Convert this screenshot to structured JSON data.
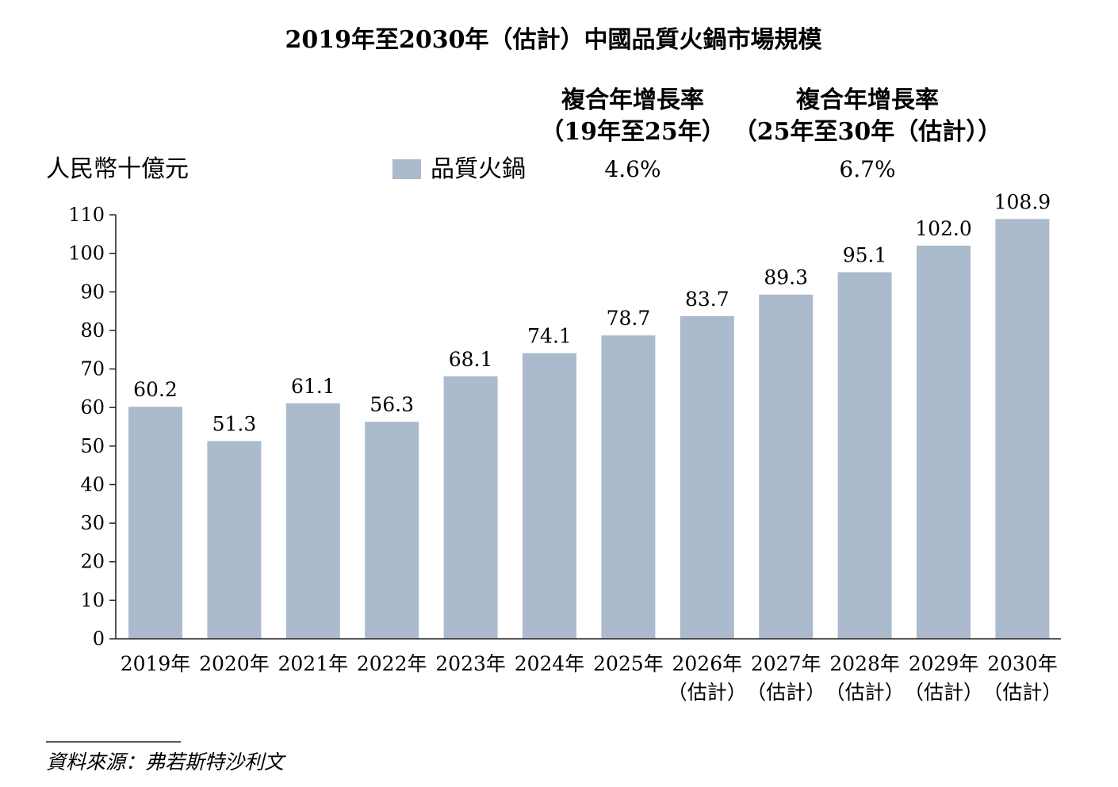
{
  "chart_data": {
    "type": "bar",
    "title": "2019年至2030年（估計）中國品質火鍋市場規模",
    "ylabel": "人民幣十億元",
    "xlabel": "",
    "ylim": [
      0,
      110
    ],
    "yticks": [
      "0",
      "10",
      "20",
      "30",
      "40",
      "50",
      "60",
      "70",
      "80",
      "90",
      "100",
      "110"
    ],
    "categories": [
      {
        "year": "2019年",
        "note": ""
      },
      {
        "year": "2020年",
        "note": ""
      },
      {
        "year": "2021年",
        "note": ""
      },
      {
        "year": "2022年",
        "note": ""
      },
      {
        "year": "2023年",
        "note": ""
      },
      {
        "year": "2024年",
        "note": ""
      },
      {
        "year": "2025年",
        "note": ""
      },
      {
        "year": "2026年",
        "note": "（估計）"
      },
      {
        "year": "2027年",
        "note": "（估計）"
      },
      {
        "year": "2028年",
        "note": "（估計）"
      },
      {
        "year": "2029年",
        "note": "（估計）"
      },
      {
        "year": "2030年",
        "note": "（估計）"
      }
    ],
    "series": [
      {
        "name": "品質火鍋",
        "color": "#abbacc",
        "values": [
          60.2,
          51.3,
          61.1,
          56.3,
          68.1,
          74.1,
          78.7,
          83.7,
          89.3,
          95.1,
          102.0,
          108.9
        ],
        "labels": [
          "60.2",
          "51.3",
          "61.1",
          "56.3",
          "68.1",
          "74.1",
          "78.7",
          "83.7",
          "89.3",
          "95.1",
          "102.0",
          "108.9"
        ]
      }
    ],
    "cagr": [
      {
        "line1": "複合年增長率",
        "line2": "（19年至25年）",
        "value": "4.6%"
      },
      {
        "line1": "複合年增長率",
        "line2": "（25年至30年（估計））",
        "value": "6.7%"
      }
    ],
    "legend_position": "top-center",
    "grid": false
  },
  "source": "資料來源：弗若斯特沙利文"
}
